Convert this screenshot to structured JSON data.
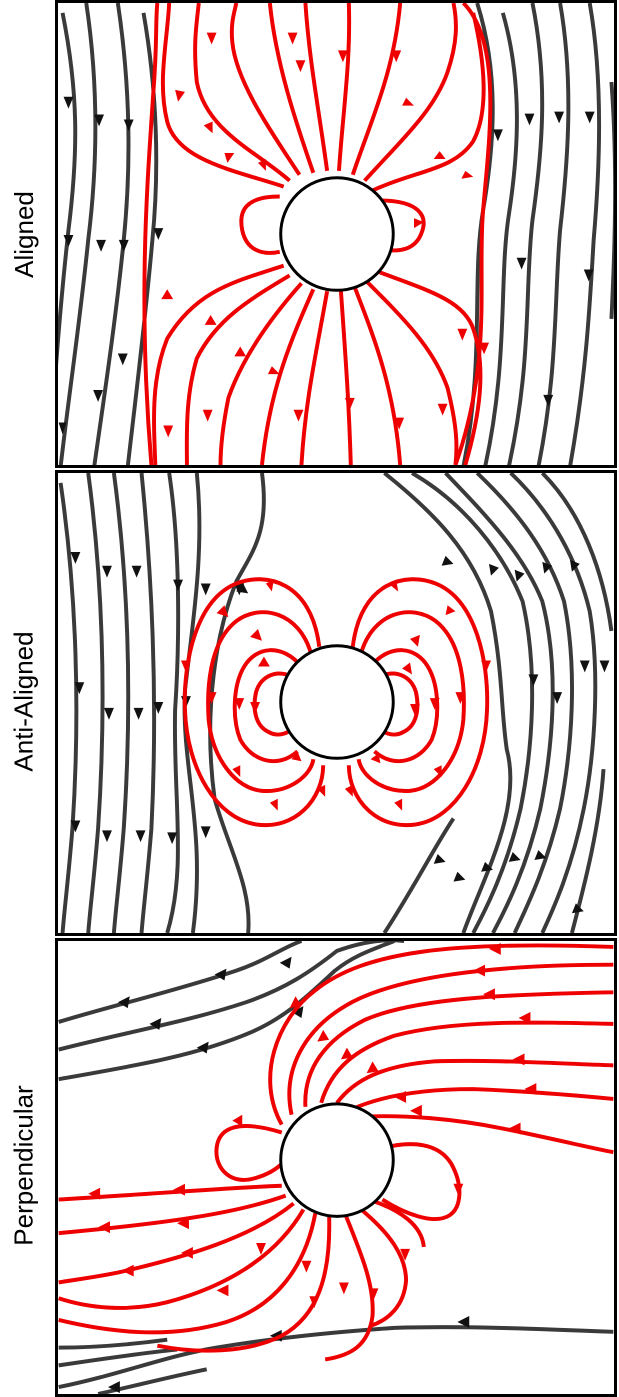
{
  "colors": {
    "background_field": "#3a3a3a",
    "magnetosphere_field": "#ee0000",
    "planet_fill": "#ffffff",
    "planet_stroke": "#000000",
    "frame": "#000000"
  },
  "panels": [
    {
      "label": "Aligned",
      "icon": "field-line-arrow-icon"
    },
    {
      "label": "Anti-Aligned",
      "icon": "field-line-arrow-icon"
    },
    {
      "label": "Perpendicular",
      "icon": "field-line-arrow-icon"
    }
  ]
}
